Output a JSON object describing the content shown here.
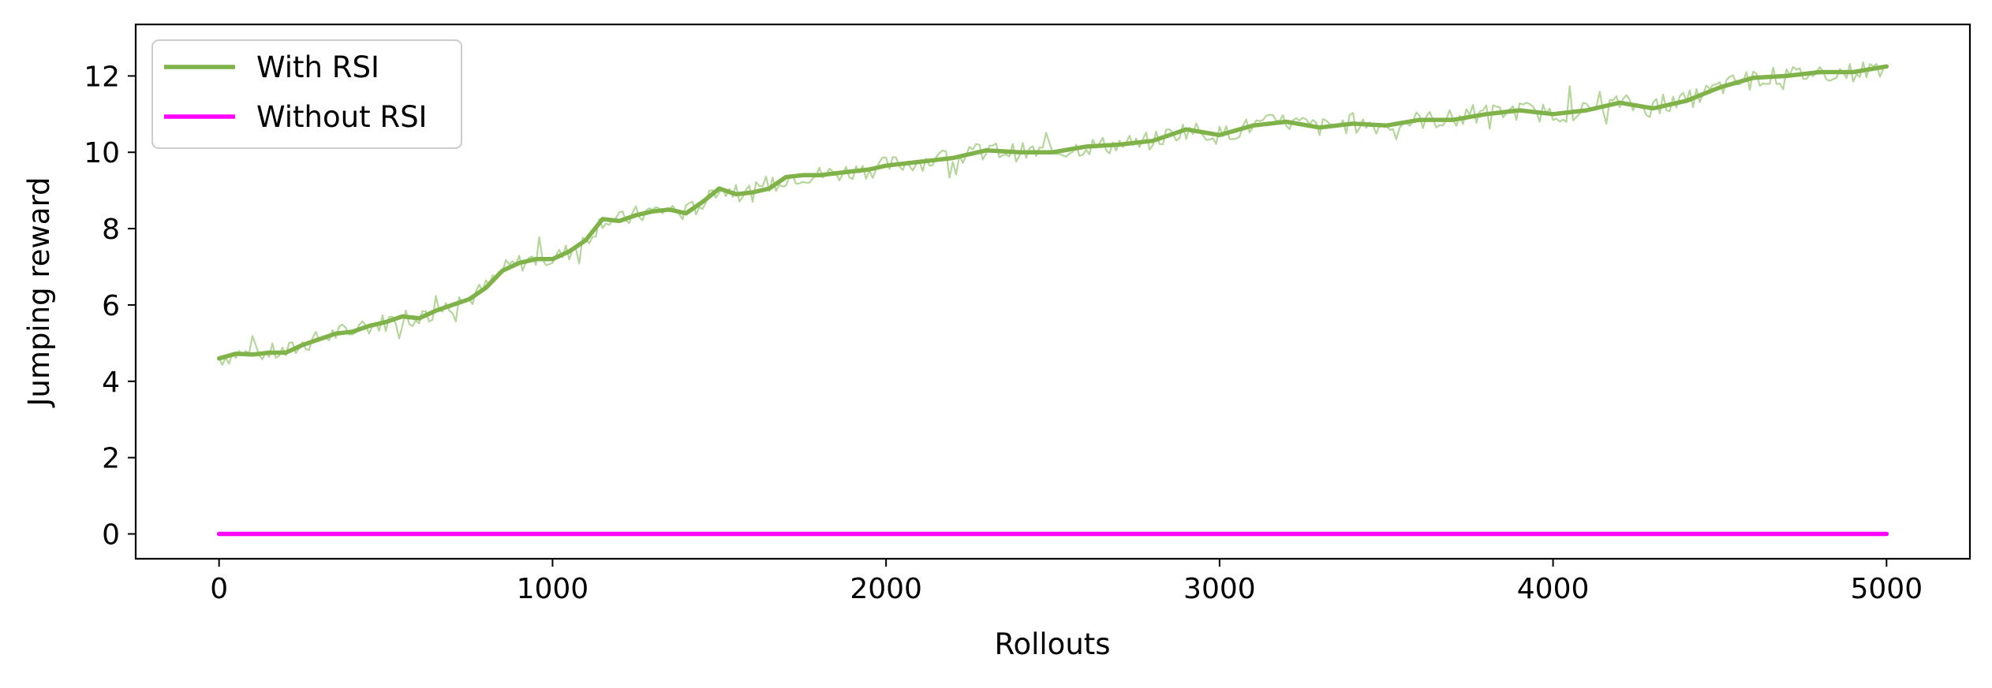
{
  "chart_data": {
    "type": "line",
    "title": "",
    "xlabel": "Rollouts",
    "ylabel": "Jumping reward",
    "xlim": [
      -250,
      5250
    ],
    "ylim": [
      -0.65,
      13.35
    ],
    "xticks": [
      0,
      1000,
      2000,
      3000,
      4000,
      5000
    ],
    "xtick_labels": [
      "0",
      "1000",
      "2000",
      "3000",
      "4000",
      "5000"
    ],
    "yticks": [
      0,
      2,
      4,
      6,
      8,
      10,
      12
    ],
    "ytick_labels": [
      "0",
      "2",
      "4",
      "6",
      "8",
      "10",
      "12"
    ],
    "grid": false,
    "legend_position": "top-left",
    "series": [
      {
        "name": "With RSI",
        "color": "#7fb34a",
        "raw_color": "#b5d69a",
        "x": [
          0,
          50,
          100,
          150,
          200,
          250,
          300,
          350,
          400,
          450,
          500,
          550,
          600,
          650,
          700,
          750,
          800,
          850,
          900,
          950,
          1000,
          1050,
          1100,
          1150,
          1200,
          1250,
          1300,
          1350,
          1400,
          1450,
          1500,
          1550,
          1600,
          1650,
          1700,
          1750,
          1800,
          1850,
          1900,
          1950,
          2000,
          2100,
          2200,
          2300,
          2400,
          2500,
          2600,
          2700,
          2800,
          2900,
          3000,
          3100,
          3200,
          3300,
          3400,
          3500,
          3600,
          3700,
          3800,
          3900,
          4000,
          4100,
          4200,
          4300,
          4400,
          4500,
          4600,
          4700,
          4800,
          4900,
          5000
        ],
        "y": [
          4.6,
          4.72,
          4.7,
          4.75,
          4.75,
          4.95,
          5.1,
          5.25,
          5.3,
          5.45,
          5.55,
          5.7,
          5.65,
          5.85,
          6.0,
          6.15,
          6.45,
          6.9,
          7.1,
          7.2,
          7.2,
          7.4,
          7.7,
          8.25,
          8.2,
          8.35,
          8.45,
          8.5,
          8.4,
          8.7,
          9.05,
          8.9,
          8.95,
          9.05,
          9.35,
          9.4,
          9.4,
          9.45,
          9.5,
          9.55,
          9.65,
          9.75,
          9.85,
          10.05,
          10.0,
          10.0,
          10.15,
          10.2,
          10.3,
          10.6,
          10.45,
          10.7,
          10.8,
          10.65,
          10.75,
          10.7,
          10.85,
          10.85,
          11.0,
          11.1,
          11.0,
          11.1,
          11.3,
          11.15,
          11.35,
          11.7,
          11.95,
          12.0,
          12.1,
          12.1,
          12.25
        ]
      },
      {
        "name": "Without RSI",
        "color": "#ff00ff",
        "x": [
          0,
          5000
        ],
        "y": [
          0,
          0
        ]
      }
    ]
  }
}
